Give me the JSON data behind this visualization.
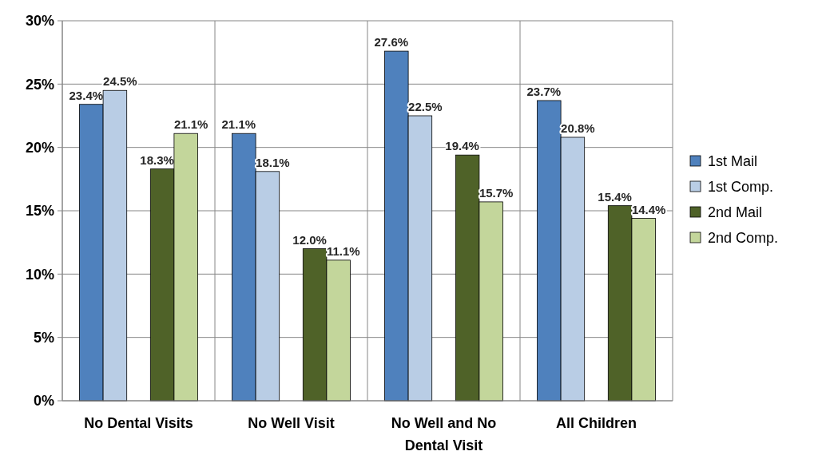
{
  "chart_data": {
    "type": "bar",
    "categories": [
      "No Dental Visits",
      "No Well Visit",
      "No Well and No Dental Visit",
      "All Children"
    ],
    "series": [
      {
        "name": "1st Mail",
        "color": "#4f81bd",
        "values": [
          23.4,
          21.1,
          27.6,
          23.7
        ],
        "value_labels": [
          "23.4%",
          "21.1%",
          "27.6%",
          "23.7%"
        ]
      },
      {
        "name": "1st Comp.",
        "color": "#b9cde5",
        "values": [
          24.5,
          18.1,
          22.5,
          20.8
        ],
        "value_labels": [
          "24.5%",
          "18.1%",
          "22.5%",
          "20.8%"
        ]
      },
      {
        "name": "2nd Mail",
        "color": "#4f6228",
        "values": [
          18.3,
          12.0,
          19.4,
          15.4
        ],
        "value_labels": [
          "18.3%",
          "12.0%",
          "19.4%",
          "15.4%"
        ]
      },
      {
        "name": "2nd Comp.",
        "color": "#c3d69b",
        "values": [
          21.1,
          11.1,
          15.7,
          14.4
        ],
        "value_labels": [
          "21.1%",
          "11.1%",
          "15.7%",
          "14.4%"
        ]
      }
    ],
    "ylim": [
      0,
      30
    ],
    "yticks": [
      {
        "value": 0,
        "label": "0%"
      },
      {
        "value": 5,
        "label": "5%"
      },
      {
        "value": 10,
        "label": "10%"
      },
      {
        "value": 15,
        "label": "15%"
      },
      {
        "value": 20,
        "label": "20%"
      },
      {
        "value": 25,
        "label": "25%"
      },
      {
        "value": 30,
        "label": "30%"
      }
    ],
    "grid": true,
    "legend": "right"
  }
}
